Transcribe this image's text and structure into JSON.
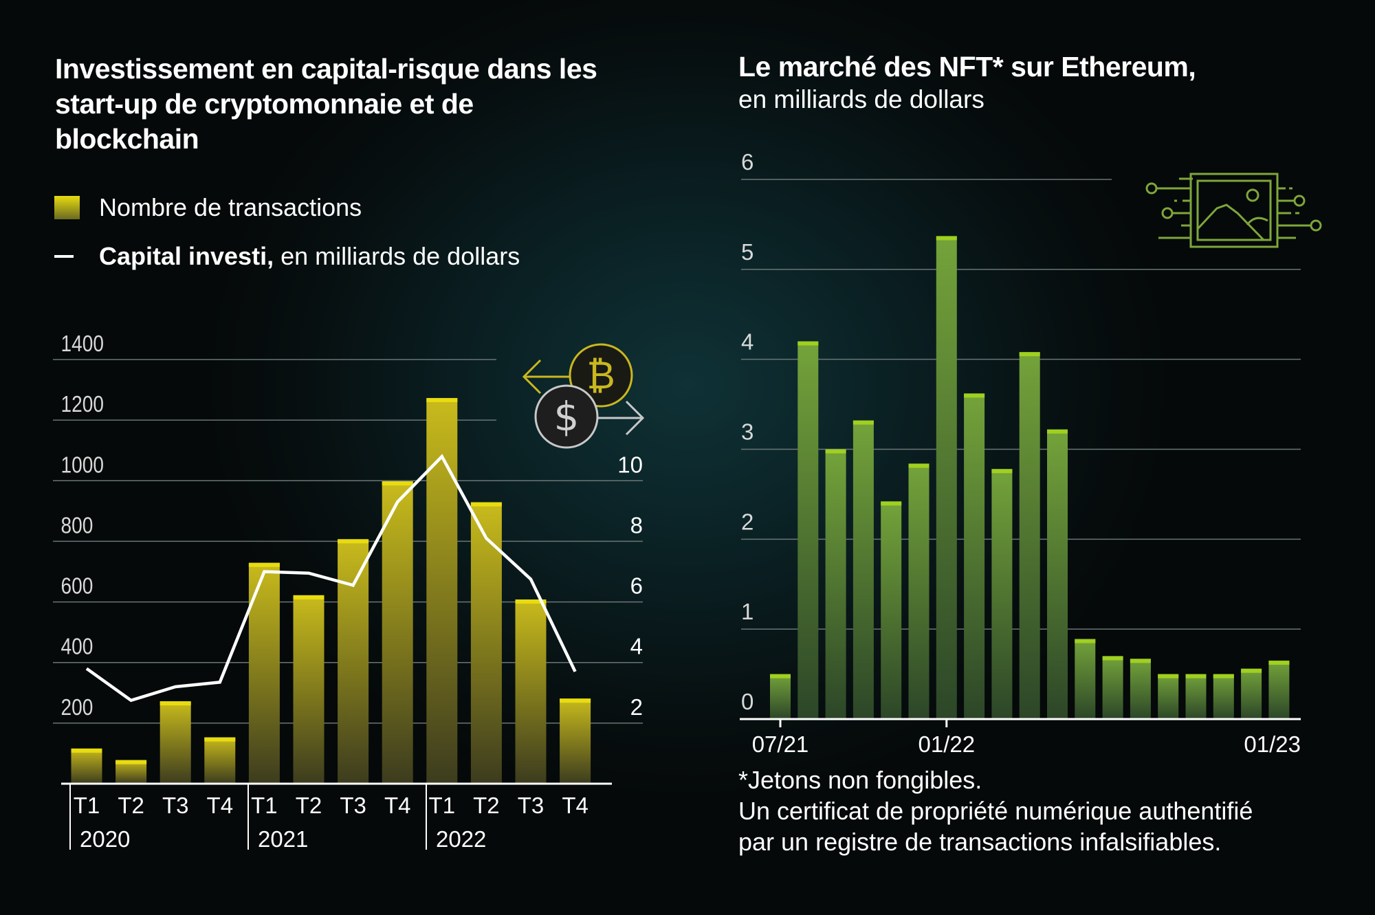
{
  "left": {
    "title_lines": [
      "Investissement en capital-risque dans les",
      "start-up de cryptomonnaie et de",
      "blockchain"
    ],
    "legend": {
      "bars_label": "Nombre de transactions",
      "line_label_bold": "Capital investi,",
      "line_label_rest": " en milliards de dollars"
    }
  },
  "right": {
    "title": "Le marché des NFT* sur Ethereum,",
    "subtitle": "en milliards de dollars",
    "footnote_lines": [
      "*Jetons non fongibles.",
      "Un certificat de propriété numérique authentifié",
      "par un registre de transactions infalsifiables."
    ]
  },
  "chart_data": [
    {
      "type": "bar",
      "categories": [
        "T1 2020",
        "T2 2020",
        "T3 2020",
        "T4 2020",
        "T1 2021",
        "T2 2021",
        "T3 2021",
        "T4 2021",
        "T1 2022",
        "T2 2022",
        "T3 2022",
        "T4 2022"
      ],
      "quarter_labels": [
        "T1",
        "T2",
        "T3",
        "T4",
        "T1",
        "T2",
        "T3",
        "T4",
        "T1",
        "T2",
        "T3",
        "T4"
      ],
      "year_labels": [
        "2020",
        "2021",
        "2022"
      ],
      "series": [
        {
          "name": "Nombre de transactions",
          "type": "bar",
          "axis": "left",
          "values": [
            116,
            78,
            272,
            153,
            729,
            622,
            807,
            998,
            1273,
            929,
            608,
            281
          ],
          "color": "#e8dc10"
        },
        {
          "name": "Capital investi, en milliards de dollars",
          "type": "line",
          "axis": "right",
          "values": [
            3.8,
            2.75,
            3.2,
            3.35,
            7.0,
            6.95,
            6.55,
            9.3,
            10.8,
            8.1,
            6.75,
            3.7
          ],
          "color": "#ffffff"
        }
      ],
      "y_left": {
        "ticks": [
          200,
          400,
          600,
          800,
          1000,
          1200,
          1400
        ],
        "range": [
          0,
          1400
        ]
      },
      "y_right": {
        "ticks": [
          2,
          4,
          6,
          8,
          10
        ],
        "range": [
          0,
          14
        ]
      },
      "grid": true,
      "legend_placement": "top-left"
    },
    {
      "type": "bar",
      "categories": [
        "07/21",
        "08/21",
        "09/21",
        "10/21",
        "11/21",
        "12/21",
        "01/22",
        "02/22",
        "03/22",
        "04/22",
        "05/22",
        "06/22",
        "07/22",
        "08/22",
        "09/22",
        "10/22",
        "11/22",
        "12/22",
        "01/23"
      ],
      "values": [
        0.5,
        4.2,
        3.0,
        3.32,
        2.42,
        2.84,
        5.37,
        3.62,
        2.78,
        4.08,
        3.22,
        0.89,
        0.7,
        0.67,
        0.5,
        0.5,
        0.5,
        0.56,
        0.65
      ],
      "x_tick_labels": [
        "07/21",
        "01/22",
        "01/23"
      ],
      "y_ticks": [
        0,
        1,
        2,
        3,
        4,
        5,
        6
      ],
      "ylim": [
        0,
        6
      ],
      "grid": true,
      "color": "#a0d020"
    }
  ],
  "icons": {
    "left": "bitcoin-dollar-exchange-icon",
    "right": "nft-image-chip-icon"
  }
}
